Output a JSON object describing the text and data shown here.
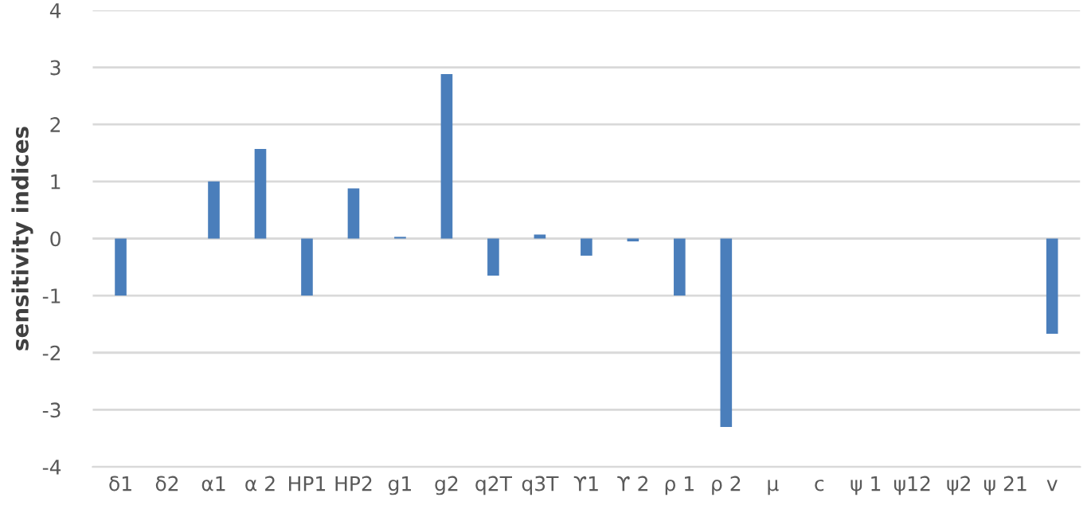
{
  "chart_data": {
    "type": "bar",
    "ylabel": "sensitivity indices",
    "categories": [
      "δ1",
      "δ2",
      "α1",
      "α 2",
      "HP1",
      "HP2",
      "g1",
      "g2",
      "q2T",
      "q3T",
      "ϒ1",
      "ϒ 2",
      "ρ 1",
      "ρ 2",
      "μ",
      "c",
      "ψ 1",
      "ψ12",
      "ψ2",
      "ψ 21",
      "v"
    ],
    "values": [
      -1.0,
      0,
      1.0,
      1.57,
      -1.0,
      0.88,
      0.03,
      2.88,
      -0.65,
      0.07,
      -0.3,
      -0.05,
      -1.0,
      -3.3,
      0,
      0,
      0,
      0,
      0,
      0,
      -1.67
    ],
    "color": "#4a7ebb",
    "ylim": [
      -4,
      4
    ],
    "yticks": [
      -4,
      -3,
      -2,
      -1,
      0,
      1,
      2,
      3,
      4
    ],
    "grid": "y"
  }
}
